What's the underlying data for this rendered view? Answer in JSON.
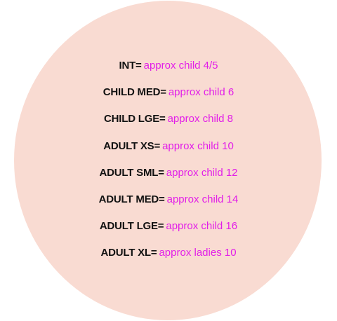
{
  "colors": {
    "circle": "#f9dbd2",
    "code_text": "#111111",
    "equivalent_text": "#e21ee8",
    "background": "#ffffff"
  },
  "size_chart": [
    {
      "code": "INT=",
      "equivalent": "approx child 4/5"
    },
    {
      "code": "CHILD MED=",
      "equivalent": "approx child 6"
    },
    {
      "code": "CHILD LGE=",
      "equivalent": "approx child 8"
    },
    {
      "code": "ADULT XS=",
      "equivalent": "approx child 10"
    },
    {
      "code": "ADULT SML=",
      "equivalent": "approx child 12"
    },
    {
      "code": "ADULT MED=",
      "equivalent": "approx child 14"
    },
    {
      "code": "ADULT LGE=",
      "equivalent": "approx child 16"
    },
    {
      "code": "ADULT XL=",
      "equivalent": "approx ladies 10"
    }
  ]
}
